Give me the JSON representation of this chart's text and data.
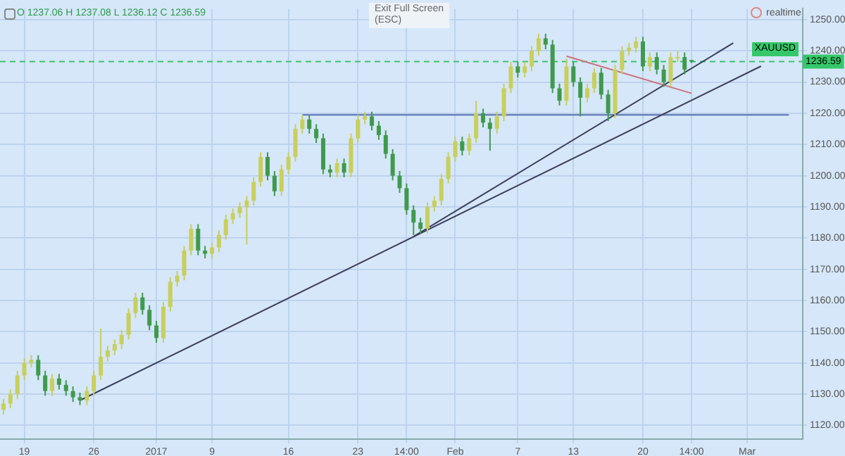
{
  "chart_data": {
    "type": "candlestick",
    "ohlc": [
      [
        1125,
        1128.5,
        1123.5,
        1127
      ],
      [
        1127,
        1131.5,
        1125.5,
        1130
      ],
      [
        1130,
        1137.5,
        1128.5,
        1136
      ],
      [
        1136,
        1141.5,
        1134.5,
        1140
      ],
      [
        1140,
        1142.5,
        1138.5,
        1141
      ],
      [
        1141,
        1142.5,
        1134.5,
        1136
      ],
      [
        1136,
        1137.5,
        1129.5,
        1131
      ],
      [
        1131,
        1136.5,
        1129.5,
        1135
      ],
      [
        1135,
        1136.5,
        1131.5,
        1133
      ],
      [
        1133,
        1134.5,
        1129.5,
        1131
      ],
      [
        1131,
        1132.5,
        1127.5,
        1129
      ],
      [
        1129,
        1130.5,
        1126.5,
        1128
      ],
      [
        1128,
        1132.5,
        1126.5,
        1131
      ],
      [
        1131,
        1137.5,
        1129.5,
        1136
      ],
      [
        1136,
        1151,
        1134.5,
        1142
      ],
      [
        1142,
        1145.5,
        1140.5,
        1144
      ],
      [
        1144,
        1147.5,
        1142.5,
        1146
      ],
      [
        1146,
        1150.5,
        1144.5,
        1149
      ],
      [
        1149,
        1157.5,
        1147.5,
        1156
      ],
      [
        1156,
        1162.5,
        1154.5,
        1161
      ],
      [
        1161,
        1162.5,
        1155.5,
        1157
      ],
      [
        1157,
        1158.5,
        1150.5,
        1152
      ],
      [
        1152,
        1153.5,
        1146.5,
        1148
      ],
      [
        1148,
        1159.5,
        1146.5,
        1158
      ],
      [
        1158,
        1167.5,
        1156.5,
        1166
      ],
      [
        1166,
        1169.5,
        1164.5,
        1168
      ],
      [
        1168,
        1177.5,
        1166.5,
        1176
      ],
      [
        1176,
        1184.5,
        1174.5,
        1183
      ],
      [
        1183,
        1184.5,
        1174.5,
        1176
      ],
      [
        1176,
        1177.5,
        1173.5,
        1175
      ],
      [
        1175,
        1178.5,
        1173.5,
        1177
      ],
      [
        1177,
        1182.5,
        1175.5,
        1181
      ],
      [
        1181,
        1187.5,
        1179.5,
        1186
      ],
      [
        1186,
        1189.5,
        1184.5,
        1188
      ],
      [
        1188,
        1191.5,
        1186.5,
        1190
      ],
      [
        1190,
        1193.5,
        1178,
        1192
      ],
      [
        1192,
        1199.5,
        1190.5,
        1198
      ],
      [
        1198,
        1207.5,
        1196.5,
        1206
      ],
      [
        1206,
        1207.5,
        1198.5,
        1200
      ],
      [
        1200,
        1201.5,
        1193.5,
        1195
      ],
      [
        1195,
        1203.5,
        1193.5,
        1202
      ],
      [
        1202,
        1207.5,
        1200.5,
        1206
      ],
      [
        1206,
        1216.5,
        1204.5,
        1215
      ],
      [
        1215,
        1219.5,
        1213.5,
        1218
      ],
      [
        1218,
        1219.5,
        1213.5,
        1215
      ],
      [
        1215,
        1216.5,
        1210.5,
        1212
      ],
      [
        1212,
        1213.5,
        1200.5,
        1202
      ],
      [
        1202,
        1203.5,
        1199.5,
        1201
      ],
      [
        1201,
        1205.5,
        1199.5,
        1204
      ],
      [
        1204,
        1205.5,
        1199.5,
        1201
      ],
      [
        1201,
        1213.5,
        1199.5,
        1212
      ],
      [
        1212,
        1219.5,
        1210.5,
        1218
      ],
      [
        1218,
        1220.5,
        1216.5,
        1219
      ],
      [
        1219,
        1220.5,
        1214.5,
        1216
      ],
      [
        1216,
        1217.5,
        1211.5,
        1213
      ],
      [
        1213,
        1214.5,
        1205.5,
        1207
      ],
      [
        1207,
        1208.5,
        1198.5,
        1200
      ],
      [
        1200,
        1201.5,
        1194.5,
        1196
      ],
      [
        1196,
        1197.5,
        1187.5,
        1189
      ],
      [
        1189,
        1190.5,
        1181,
        1185
      ],
      [
        1185,
        1186.5,
        1181.5,
        1183
      ],
      [
        1183,
        1191.5,
        1181.5,
        1190
      ],
      [
        1190,
        1193.5,
        1188.5,
        1192
      ],
      [
        1192,
        1200.5,
        1190.5,
        1199
      ],
      [
        1199,
        1207.5,
        1197.5,
        1206
      ],
      [
        1206,
        1212.5,
        1204.5,
        1211
      ],
      [
        1211,
        1212.5,
        1206.5,
        1208
      ],
      [
        1208,
        1213.5,
        1206.5,
        1212
      ],
      [
        1212,
        1224,
        1210.5,
        1220
      ],
      [
        1220,
        1221.5,
        1215.5,
        1217
      ],
      [
        1217,
        1218.5,
        1208,
        1215
      ],
      [
        1215,
        1220.5,
        1213.5,
        1219
      ],
      [
        1219,
        1229.5,
        1217.5,
        1228
      ],
      [
        1228,
        1236.5,
        1226.5,
        1235
      ],
      [
        1235,
        1236.5,
        1231.5,
        1233
      ],
      [
        1233,
        1236.5,
        1231.5,
        1235
      ],
      [
        1235,
        1241.5,
        1233.5,
        1240
      ],
      [
        1240,
        1245.5,
        1238.5,
        1244
      ],
      [
        1244,
        1245.5,
        1240.5,
        1242
      ],
      [
        1242,
        1243.5,
        1226.5,
        1228
      ],
      [
        1228,
        1229.5,
        1222.5,
        1224
      ],
      [
        1224,
        1237.5,
        1222.5,
        1235
      ],
      [
        1235,
        1236.5,
        1228.5,
        1230
      ],
      [
        1230,
        1231.5,
        1219,
        1225
      ],
      [
        1225,
        1229.5,
        1223.5,
        1228
      ],
      [
        1228,
        1234.5,
        1226.5,
        1233
      ],
      [
        1233,
        1234.5,
        1224.5,
        1226
      ],
      [
        1226,
        1227.5,
        1217.5,
        1220
      ],
      [
        1220,
        1235.5,
        1218.5,
        1234
      ],
      [
        1234,
        1241.5,
        1232.5,
        1240
      ],
      [
        1240,
        1242.5,
        1238.5,
        1241
      ],
      [
        1241,
        1244.5,
        1239.5,
        1243
      ],
      [
        1243,
        1244.5,
        1233.5,
        1235
      ],
      [
        1235,
        1239.5,
        1233.5,
        1238
      ],
      [
        1238,
        1239.5,
        1232.5,
        1234
      ],
      [
        1234,
        1235.5,
        1228.5,
        1230
      ],
      [
        1230,
        1239.5,
        1228.5,
        1238
      ],
      [
        1238,
        1240,
        1236.5,
        1238
      ],
      [
        1238,
        1239.5,
        1232.5,
        1234
      ],
      [
        1237.06,
        1237.08,
        1236.12,
        1236.59
      ],
      null,
      null,
      null,
      null,
      null,
      null,
      null,
      null,
      null,
      null,
      null,
      null,
      null,
      null,
      null,
      null
    ],
    "colors": [
      "#c8cf5c",
      "#c8cf5c",
      "#c8cf5c",
      "#c8cf5c",
      "#c8cf5c",
      "#3f9a4c",
      "#3f9a4c",
      "#c8cf5c",
      "#3f9a4c",
      "#3f9a4c",
      "#3f9a4c",
      "#3f9a4c",
      "#c8cf5c",
      "#c8cf5c",
      "#c8cf5c",
      "#c8cf5c",
      "#c8cf5c",
      "#c8cf5c",
      "#c8cf5c",
      "#c8cf5c",
      "#3f9a4c",
      "#3f9a4c",
      "#3f9a4c",
      "#c8cf5c",
      "#c8cf5c",
      "#c8cf5c",
      "#c8cf5c",
      "#c8cf5c",
      "#3f9a4c",
      "#3f9a4c",
      "#c8cf5c",
      "#c8cf5c",
      "#c8cf5c",
      "#c8cf5c",
      "#c8cf5c",
      "#c8cf5c",
      "#c8cf5c",
      "#c8cf5c",
      "#3f9a4c",
      "#3f9a4c",
      "#c8cf5c",
      "#c8cf5c",
      "#c8cf5c",
      "#c8cf5c",
      "#3f9a4c",
      "#3f9a4c",
      "#3f9a4c",
      "#3f9a4c",
      "#c8cf5c",
      "#3f9a4c",
      "#c8cf5c",
      "#c8cf5c",
      "#c8cf5c",
      "#3f9a4c",
      "#3f9a4c",
      "#3f9a4c",
      "#3f9a4c",
      "#3f9a4c",
      "#3f9a4c",
      "#3f9a4c",
      "#3f9a4c",
      "#c8cf5c",
      "#c8cf5c",
      "#c8cf5c",
      "#c8cf5c",
      "#c8cf5c",
      "#3f9a4c",
      "#c8cf5c",
      "#c8cf5c",
      "#3f9a4c",
      "#3f9a4c",
      "#c8cf5c",
      "#c8cf5c",
      "#c8cf5c",
      "#3f9a4c",
      "#c8cf5c",
      "#c8cf5c",
      "#c8cf5c",
      "#3f9a4c",
      "#3f9a4c",
      "#3f9a4c",
      "#c8cf5c",
      "#3f9a4c",
      "#3f9a4c",
      "#c8cf5c",
      "#c8cf5c",
      "#3f9a4c",
      "#3f9a4c",
      "#c8cf5c",
      "#c8cf5c",
      "#c8cf5c",
      "#c8cf5c",
      "#3f9a4c",
      "#c8cf5c",
      "#3f9a4c",
      "#3f9a4c",
      "#c8cf5c",
      "#c8cf5c",
      "#3f9a4c",
      "#3f9a4c",
      null,
      null,
      null,
      null,
      null,
      null,
      null,
      null,
      null,
      null,
      null,
      null,
      null,
      null,
      null,
      null
    ],
    "series": [
      {
        "type": "line",
        "color": "#3a3f5c",
        "values": [
          null,
          null,
          null,
          null,
          null,
          null,
          null,
          null,
          null,
          null,
          null,
          1128,
          null,
          null,
          null,
          null,
          null,
          null,
          null,
          null,
          null,
          null,
          null,
          null,
          null,
          null,
          null,
          null,
          null,
          null,
          null,
          null,
          null,
          null,
          null,
          null,
          null,
          null,
          null,
          null,
          null,
          null,
          null,
          null,
          null,
          null,
          null,
          null,
          null,
          null,
          null,
          null,
          null,
          null,
          null,
          null,
          null,
          null,
          null,
          null,
          null,
          null,
          null,
          null,
          null,
          null,
          null,
          null,
          null,
          null,
          null,
          null,
          null,
          null,
          null,
          null,
          null,
          null,
          null,
          null,
          null,
          null,
          null,
          null,
          null,
          null,
          null,
          null,
          null,
          null,
          null,
          null,
          null,
          null,
          null,
          null,
          null,
          null,
          null,
          null,
          null,
          null,
          null,
          null,
          null,
          null,
          null,
          null,
          null,
          1235.1,
          null,
          null,
          null,
          null,
          null,
          null
        ]
      },
      {
        "type": "line",
        "color": "#3a3f5c",
        "values": [
          null,
          null,
          null,
          null,
          null,
          null,
          null,
          null,
          null,
          null,
          null,
          null,
          null,
          null,
          null,
          null,
          null,
          null,
          null,
          null,
          null,
          null,
          null,
          null,
          null,
          null,
          null,
          null,
          null,
          null,
          null,
          null,
          null,
          null,
          null,
          null,
          null,
          null,
          null,
          null,
          null,
          null,
          null,
          null,
          null,
          null,
          null,
          null,
          null,
          null,
          null,
          null,
          null,
          null,
          null,
          null,
          null,
          null,
          null,
          1180.5,
          null,
          null,
          null,
          null,
          null,
          null,
          null,
          null,
          null,
          null,
          null,
          null,
          null,
          null,
          null,
          null,
          null,
          null,
          null,
          null,
          null,
          null,
          null,
          null,
          null,
          null,
          null,
          null,
          null,
          null,
          null,
          null,
          null,
          null,
          null,
          null,
          null,
          null,
          null,
          null,
          null,
          null,
          null,
          null,
          null,
          1242.5,
          null,
          null,
          null,
          null,
          null,
          null,
          null,
          null,
          null,
          null
        ]
      },
      {
        "type": "line",
        "color": "#5a6fb0",
        "values": [
          null,
          null,
          null,
          null,
          null,
          null,
          null,
          null,
          null,
          null,
          null,
          null,
          null,
          null,
          null,
          null,
          null,
          null,
          null,
          null,
          null,
          null,
          null,
          null,
          null,
          null,
          null,
          null,
          null,
          null,
          null,
          null,
          null,
          null,
          null,
          null,
          null,
          null,
          null,
          null,
          null,
          null,
          null,
          1219.5,
          null,
          null,
          null,
          null,
          null,
          null,
          null,
          null,
          null,
          null,
          null,
          null,
          null,
          null,
          null,
          null,
          null,
          null,
          null,
          null,
          null,
          null,
          null,
          null,
          null,
          null,
          null,
          null,
          null,
          null,
          null,
          null,
          null,
          null,
          null,
          null,
          null,
          null,
          null,
          null,
          null,
          null,
          null,
          null,
          null,
          null,
          null,
          null,
          null,
          null,
          null,
          null,
          null,
          null,
          null,
          null,
          null,
          null,
          null,
          null,
          null,
          null,
          null,
          null,
          null,
          null,
          null,
          null,
          null,
          1219.5,
          null,
          null
        ]
      },
      {
        "type": "line",
        "color": "#c9727a",
        "values": [
          null,
          null,
          null,
          null,
          null,
          null,
          null,
          null,
          null,
          null,
          null,
          null,
          null,
          null,
          null,
          null,
          null,
          null,
          null,
          null,
          null,
          null,
          null,
          null,
          null,
          null,
          null,
          null,
          null,
          null,
          null,
          null,
          null,
          null,
          null,
          null,
          null,
          null,
          null,
          null,
          null,
          null,
          null,
          null,
          null,
          null,
          null,
          null,
          null,
          null,
          null,
          null,
          null,
          null,
          null,
          null,
          null,
          null,
          null,
          null,
          null,
          null,
          null,
          null,
          null,
          null,
          null,
          null,
          null,
          null,
          null,
          null,
          null,
          null,
          null,
          null,
          null,
          null,
          null,
          null,
          null,
          1238.3,
          null,
          null,
          null,
          null,
          null,
          null,
          null,
          null,
          null,
          null,
          null,
          null,
          null,
          null,
          null,
          null,
          null,
          1226.4,
          null,
          null,
          null,
          null,
          null,
          null,
          null,
          null,
          null,
          null,
          null,
          null,
          null,
          null,
          null,
          null
        ]
      }
    ],
    "ref_lines": [
      {
        "axis": "y",
        "value": 1236.59,
        "label": "1236.59",
        "color": "#35c86a",
        "line_style": "dashed"
      }
    ],
    "annotations": [
      "O 1237.06 H 1237.08 L 1236.12 C 1236.59",
      "Exit Full Screen\n(ESC)",
      "realtime",
      "XAUUSD"
    ],
    "categories": [
      null,
      null,
      null,
      "19",
      null,
      null,
      null,
      null,
      null,
      null,
      null,
      null,
      null,
      "26",
      null,
      null,
      null,
      null,
      null,
      null,
      null,
      null,
      "2017",
      null,
      null,
      null,
      null,
      null,
      null,
      null,
      "9",
      null,
      null,
      null,
      null,
      null,
      null,
      null,
      null,
      null,
      null,
      "16",
      null,
      null,
      null,
      null,
      null,
      null,
      null,
      null,
      null,
      "23",
      null,
      null,
      null,
      null,
      null,
      null,
      "14:00",
      null,
      null,
      null,
      null,
      null,
      null,
      "Feb",
      null,
      null,
      null,
      null,
      null,
      null,
      null,
      null,
      "7",
      null,
      null,
      null,
      null,
      null,
      null,
      null,
      "13",
      null,
      null,
      null,
      null,
      null,
      null,
      null,
      null,
      null,
      "20",
      null,
      null,
      null,
      null,
      null,
      null,
      "14:00",
      null,
      null,
      null,
      null,
      null,
      null,
      null,
      "Mar",
      null,
      null,
      null,
      null,
      null,
      null,
      null,
      null
    ],
    "ylim": [
      1115.6,
      1253.5
    ],
    "yticks": [
      {
        "value": 1120,
        "label": "1120.00"
      },
      {
        "value": 1130,
        "label": "1130.00"
      },
      {
        "value": 1140,
        "label": "1140.00"
      },
      {
        "value": 1150,
        "label": "1150.00"
      },
      {
        "value": 1160,
        "label": "1160.00"
      },
      {
        "value": 1170,
        "label": "1170.00"
      },
      {
        "value": 1180,
        "label": "1180.00"
      },
      {
        "value": 1190,
        "label": "1190.00"
      },
      {
        "value": 1200,
        "label": "1200.00"
      },
      {
        "value": 1210,
        "label": "1210.00"
      },
      {
        "value": 1220,
        "label": "1220.00"
      },
      {
        "value": 1230,
        "label": "1230.00"
      },
      {
        "value": 1240,
        "label": "1240.00"
      },
      {
        "value": 1250,
        "label": "1250.00"
      }
    ],
    "grid": true,
    "legend": false,
    "marker": "none",
    "line_style": "solid"
  }
}
